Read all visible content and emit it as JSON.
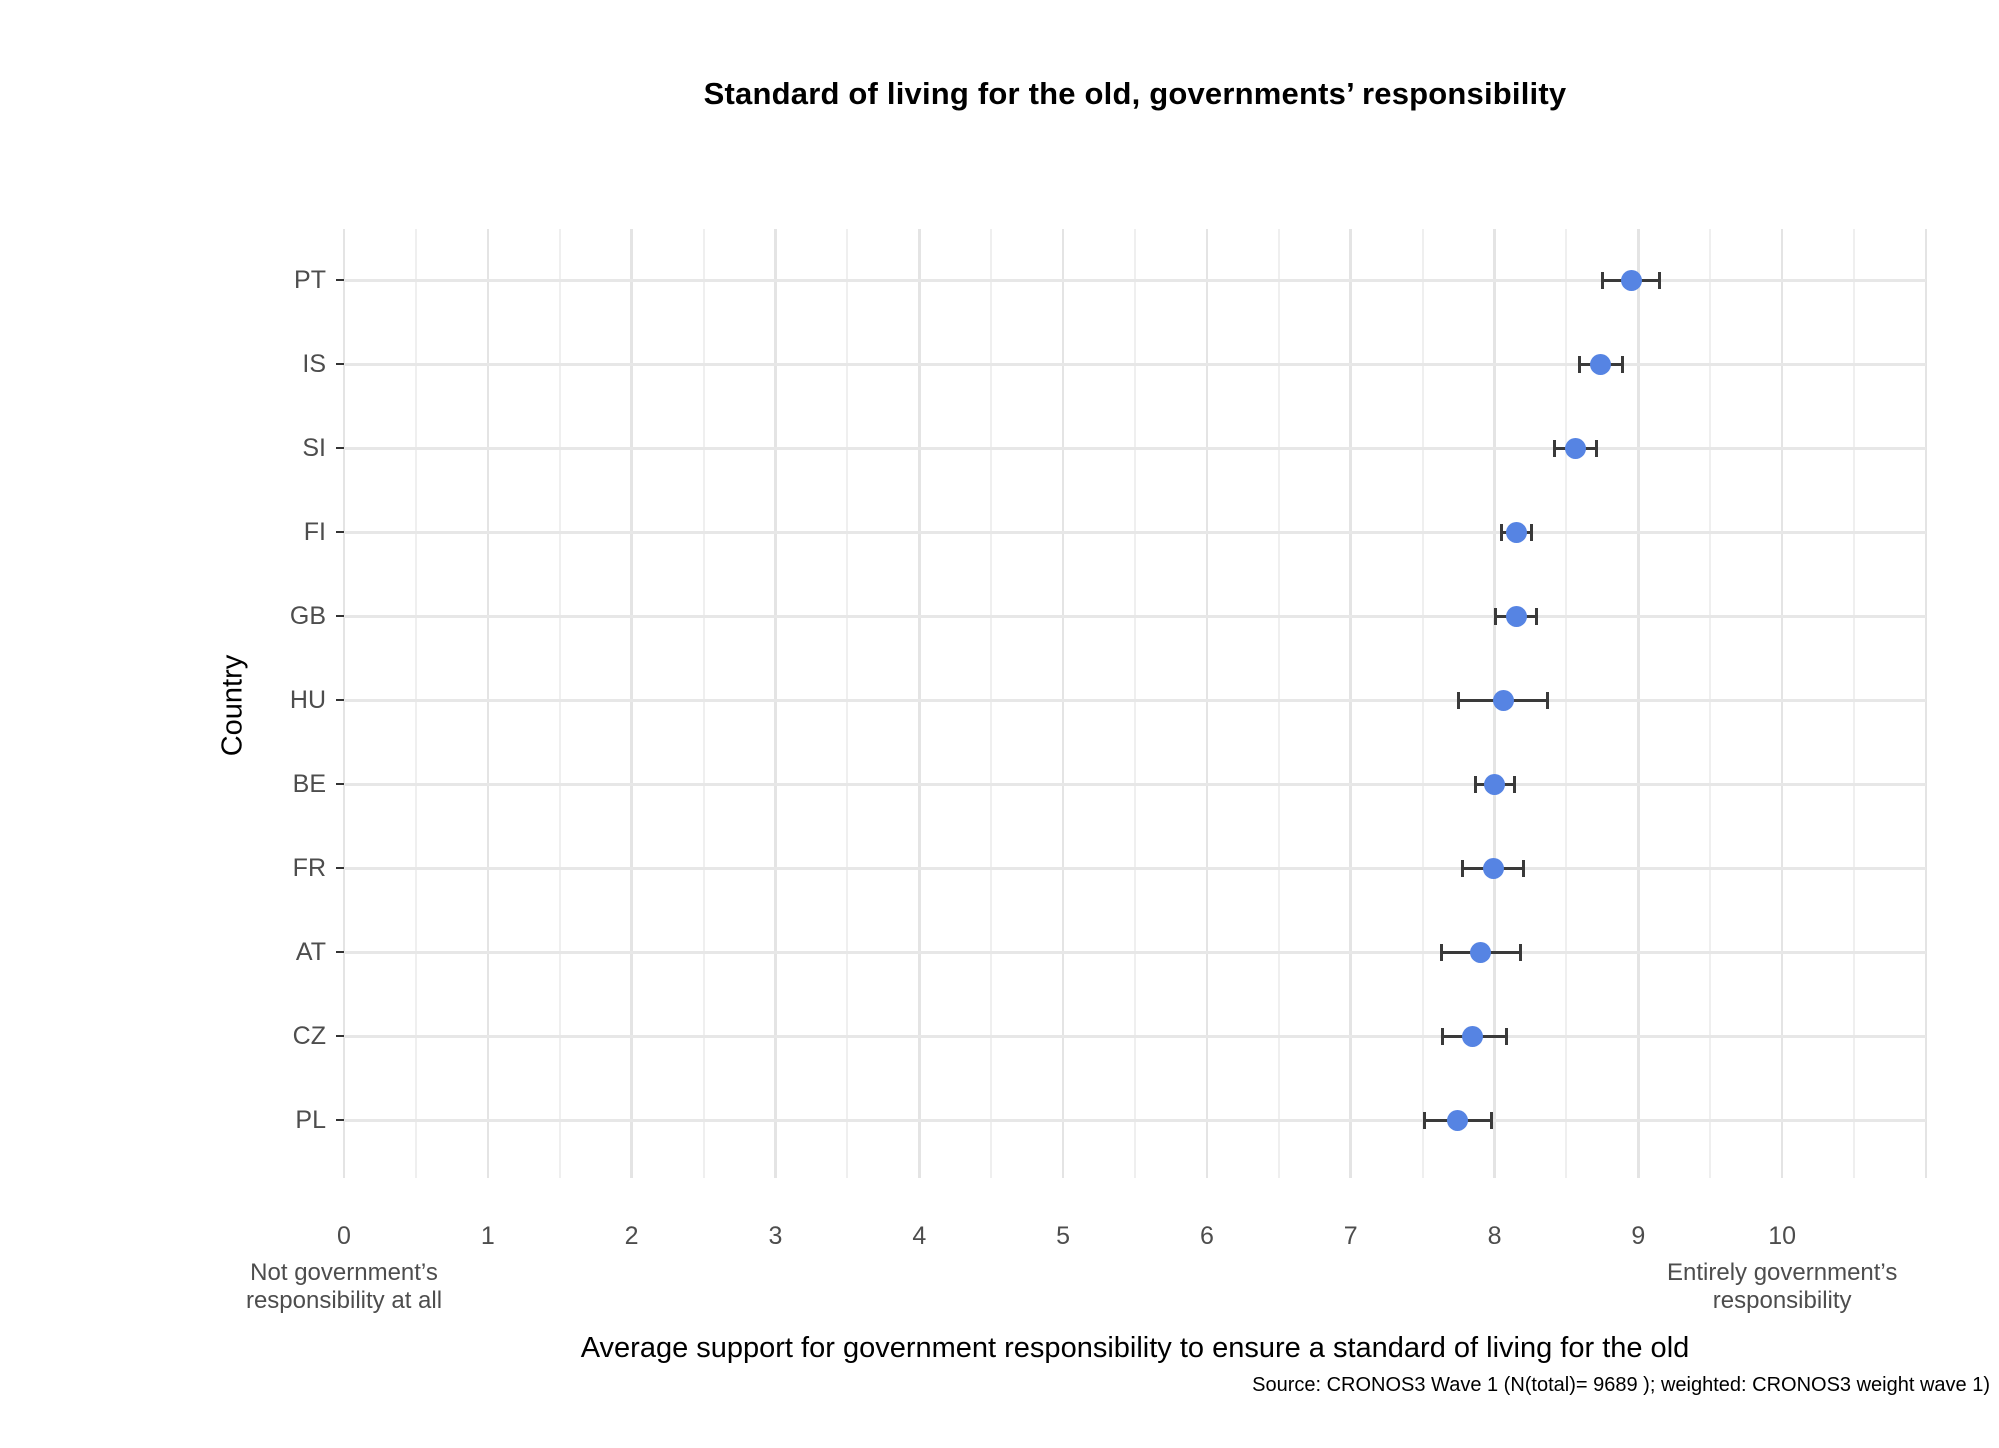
{
  "title": "Standard of living for the old, governments’ responsibility",
  "y_axis_title": "Country",
  "x_axis_title": "Average support for government responsibility to ensure a standard of living for the old",
  "caption": "Source: CRONOS3 Wave 1 (N(total)= 9689 ); weighted: CRONOS3 weight wave 1)",
  "colors": {
    "dot": "#5684e3",
    "error_bar": "#3a3a3a",
    "grid_major": "#e4e4e4",
    "grid_minor": "#efefef",
    "tick_label": "#4d4d4d"
  },
  "chart_data": {
    "type": "scatter",
    "orientation": "horizontal-dotplot-with-error-bars",
    "title": "Standard of living for the old, governments’ responsibility",
    "xlabel": "Average support for government responsibility to ensure a standard of living for the old",
    "ylabel": "Country",
    "xlim": [
      0,
      11
    ],
    "x_ticks": [
      0,
      1,
      2,
      3,
      4,
      5,
      6,
      7,
      8,
      9,
      10
    ],
    "x_min_label": "Not government’s\nresponsibility at all",
    "x_max_label": "Entirely government’s\nresponsibility",
    "grid": "major-and-minor-x, major-y",
    "legend": "none",
    "categories": [
      "PT",
      "IS",
      "SI",
      "FI",
      "GB",
      "HU",
      "BE",
      "FR",
      "AT",
      "CZ",
      "PL"
    ],
    "series": [
      {
        "name": "mean",
        "values": [
          8.95,
          8.74,
          8.56,
          8.15,
          8.15,
          8.06,
          8.0,
          7.99,
          7.9,
          7.85,
          7.74
        ]
      },
      {
        "name": "ci_low",
        "values": [
          8.75,
          8.59,
          8.42,
          8.05,
          8.01,
          7.75,
          7.87,
          7.78,
          7.63,
          7.64,
          7.51
        ]
      },
      {
        "name": "ci_high",
        "values": [
          9.15,
          8.89,
          8.71,
          8.26,
          8.29,
          8.37,
          8.14,
          8.2,
          8.18,
          8.08,
          7.98
        ]
      }
    ]
  }
}
